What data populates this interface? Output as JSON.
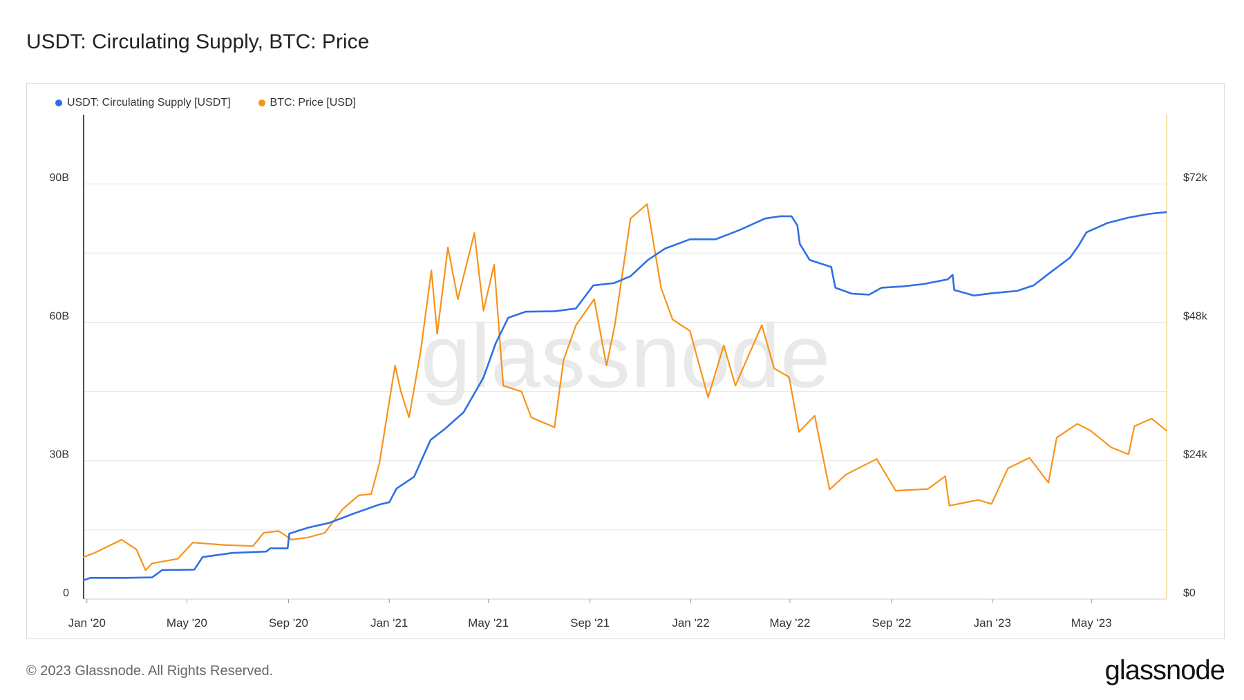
{
  "title": "USDT: Circulating Supply, BTC: Price",
  "footer": "© 2023 Glassnode. All Rights Reserved.",
  "brand": "glassnode",
  "watermark": "glassnode",
  "colors": {
    "usdt": "#2f6fe6",
    "btc": "#f7931a",
    "grid": "#e6e6e6",
    "axis": "#111111",
    "right_axis": "#f5d98a"
  },
  "chart_data": {
    "type": "line",
    "title": "USDT: Circulating Supply, BTC: Price",
    "x_ticks": [
      "Jan '20",
      "May '20",
      "Sep '20",
      "Jan '21",
      "May '21",
      "Sep '21",
      "Jan '22",
      "May '22",
      "Sep '22",
      "Jan '23",
      "May '23"
    ],
    "x_range": [
      "2019-12-28",
      "2023-07-31"
    ],
    "left_axis": {
      "ticks": [
        "0",
        "30B",
        "60B",
        "90B"
      ],
      "ylim": [
        0,
        105
      ]
    },
    "right_axis": {
      "ticks": [
        "$0",
        "$24k",
        "$48k",
        "$72k"
      ],
      "ylim": [
        0,
        84
      ]
    },
    "grid": true,
    "legend_position": "top-left",
    "series": [
      {
        "name": "USDT: Circulating Supply [USDT]",
        "axis": "left",
        "unit": "billion USDT",
        "points": [
          [
            "2019-12-28",
            4.1
          ],
          [
            "2020-01-05",
            4.6
          ],
          [
            "2020-02-15",
            4.6
          ],
          [
            "2020-03-20",
            4.7
          ],
          [
            "2020-04-01",
            6.3
          ],
          [
            "2020-05-10",
            6.4
          ],
          [
            "2020-05-20",
            9.1
          ],
          [
            "2020-06-25",
            10.0
          ],
          [
            "2020-08-05",
            10.3
          ],
          [
            "2020-08-10",
            11.0
          ],
          [
            "2020-08-31",
            11.0
          ],
          [
            "2020-09-02",
            14.2
          ],
          [
            "2020-09-25",
            15.5
          ],
          [
            "2020-10-20",
            16.5
          ],
          [
            "2020-11-20",
            18.6
          ],
          [
            "2020-12-20",
            20.5
          ],
          [
            "2021-01-01",
            21.0
          ],
          [
            "2021-01-10",
            24.0
          ],
          [
            "2021-01-31",
            26.5
          ],
          [
            "2021-02-20",
            34.5
          ],
          [
            "2021-03-10",
            37.0
          ],
          [
            "2021-04-01",
            40.5
          ],
          [
            "2021-04-25",
            48.0
          ],
          [
            "2021-05-10",
            55.5
          ],
          [
            "2021-05-25",
            61.0
          ],
          [
            "2021-06-15",
            62.3
          ],
          [
            "2021-07-20",
            62.4
          ],
          [
            "2021-08-15",
            63.0
          ],
          [
            "2021-09-05",
            68.0
          ],
          [
            "2021-09-30",
            68.5
          ],
          [
            "2021-10-20",
            70.0
          ],
          [
            "2021-11-10",
            73.5
          ],
          [
            "2021-12-01",
            76.0
          ],
          [
            "2021-12-31",
            78.0
          ],
          [
            "2022-01-31",
            78.0
          ],
          [
            "2022-03-01",
            80.0
          ],
          [
            "2022-04-01",
            82.5
          ],
          [
            "2022-04-20",
            83.0
          ],
          [
            "2022-05-03",
            83.0
          ],
          [
            "2022-05-10",
            81.0
          ],
          [
            "2022-05-13",
            77.0
          ],
          [
            "2022-05-25",
            73.5
          ],
          [
            "2022-06-20",
            72.0
          ],
          [
            "2022-06-25",
            67.5
          ],
          [
            "2022-07-15",
            66.2
          ],
          [
            "2022-08-05",
            66.0
          ],
          [
            "2022-08-20",
            67.5
          ],
          [
            "2022-09-15",
            67.8
          ],
          [
            "2022-10-10",
            68.3
          ],
          [
            "2022-11-08",
            69.3
          ],
          [
            "2022-11-14",
            70.3
          ],
          [
            "2022-11-16",
            67.0
          ],
          [
            "2022-12-10",
            65.8
          ],
          [
            "2022-12-31",
            66.3
          ],
          [
            "2023-01-31",
            66.8
          ],
          [
            "2023-02-20",
            68.0
          ],
          [
            "2023-03-10",
            70.5
          ],
          [
            "2023-04-05",
            74.0
          ],
          [
            "2023-04-15",
            76.5
          ],
          [
            "2023-04-25",
            79.5
          ],
          [
            "2023-05-20",
            81.5
          ],
          [
            "2023-06-15",
            82.7
          ],
          [
            "2023-07-10",
            83.5
          ],
          [
            "2023-07-31",
            83.9
          ]
        ]
      },
      {
        "name": "BTC: Price [USD]",
        "axis": "right",
        "unit": "USD thousands",
        "points": [
          [
            "2019-12-28",
            7.3
          ],
          [
            "2020-01-10",
            8.0
          ],
          [
            "2020-02-12",
            10.3
          ],
          [
            "2020-03-01",
            8.6
          ],
          [
            "2020-03-12",
            5.0
          ],
          [
            "2020-03-20",
            6.2
          ],
          [
            "2020-04-20",
            7.0
          ],
          [
            "2020-05-08",
            9.8
          ],
          [
            "2020-06-15",
            9.4
          ],
          [
            "2020-07-20",
            9.2
          ],
          [
            "2020-08-02",
            11.5
          ],
          [
            "2020-08-20",
            11.8
          ],
          [
            "2020-09-05",
            10.3
          ],
          [
            "2020-09-25",
            10.7
          ],
          [
            "2020-10-15",
            11.5
          ],
          [
            "2020-11-05",
            15.5
          ],
          [
            "2020-11-25",
            18.0
          ],
          [
            "2020-12-10",
            18.2
          ],
          [
            "2020-12-20",
            23.5
          ],
          [
            "2021-01-08",
            40.5
          ],
          [
            "2021-01-15",
            36.0
          ],
          [
            "2021-01-25",
            31.5
          ],
          [
            "2021-02-08",
            43.0
          ],
          [
            "2021-02-21",
            57.0
          ],
          [
            "2021-02-28",
            46.0
          ],
          [
            "2021-03-13",
            61.0
          ],
          [
            "2021-03-25",
            52.0
          ],
          [
            "2021-04-14",
            63.5
          ],
          [
            "2021-04-25",
            50.0
          ],
          [
            "2021-05-08",
            58.0
          ],
          [
            "2021-05-19",
            37.0
          ],
          [
            "2021-06-10",
            36.0
          ],
          [
            "2021-06-22",
            31.5
          ],
          [
            "2021-07-20",
            29.8
          ],
          [
            "2021-07-31",
            41.5
          ],
          [
            "2021-08-15",
            47.5
          ],
          [
            "2021-09-06",
            52.0
          ],
          [
            "2021-09-21",
            40.5
          ],
          [
            "2021-10-01",
            47.5
          ],
          [
            "2021-10-20",
            66.0
          ],
          [
            "2021-11-09",
            68.5
          ],
          [
            "2021-11-26",
            54.0
          ],
          [
            "2021-12-10",
            48.5
          ],
          [
            "2021-12-31",
            46.5
          ],
          [
            "2022-01-22",
            35.0
          ],
          [
            "2022-02-10",
            44.0
          ],
          [
            "2022-02-24",
            37.0
          ],
          [
            "2022-03-28",
            47.5
          ],
          [
            "2022-04-12",
            40.0
          ],
          [
            "2022-04-30",
            38.5
          ],
          [
            "2022-05-12",
            29.0
          ],
          [
            "2022-05-31",
            31.8
          ],
          [
            "2022-06-18",
            19.0
          ],
          [
            "2022-07-08",
            21.6
          ],
          [
            "2022-08-14",
            24.3
          ],
          [
            "2022-09-06",
            18.8
          ],
          [
            "2022-10-15",
            19.1
          ],
          [
            "2022-11-05",
            21.3
          ],
          [
            "2022-11-10",
            16.2
          ],
          [
            "2022-12-15",
            17.2
          ],
          [
            "2022-12-31",
            16.5
          ],
          [
            "2023-01-20",
            22.7
          ],
          [
            "2023-02-15",
            24.5
          ],
          [
            "2023-03-10",
            20.2
          ],
          [
            "2023-03-20",
            28.0
          ],
          [
            "2023-04-14",
            30.4
          ],
          [
            "2023-04-30",
            29.2
          ],
          [
            "2023-05-25",
            26.3
          ],
          [
            "2023-06-15",
            25.1
          ],
          [
            "2023-06-22",
            30.0
          ],
          [
            "2023-07-13",
            31.3
          ],
          [
            "2023-07-31",
            29.2
          ]
        ]
      }
    ]
  }
}
